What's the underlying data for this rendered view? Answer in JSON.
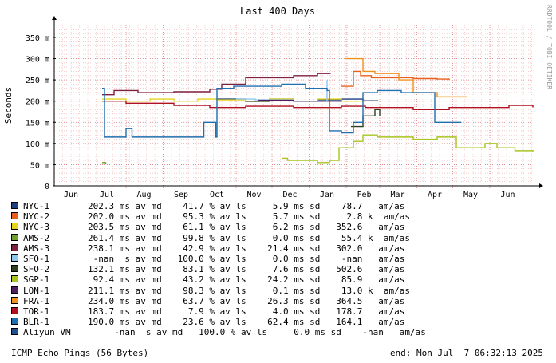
{
  "chart_data": {
    "type": "line",
    "title": "Last 400 Days",
    "ylabel": "Seconds",
    "watermark": "RRDTOOL / TOBI OETIKER",
    "ylim": [
      0,
      0.38
    ],
    "yticks": [
      {
        "v": 0,
        "label": "0"
      },
      {
        "v": 0.05,
        "label": "50 m"
      },
      {
        "v": 0.1,
        "label": "100 m"
      },
      {
        "v": 0.15,
        "label": "150 m"
      },
      {
        "v": 0.2,
        "label": "200 m"
      },
      {
        "v": 0.25,
        "label": "250 m"
      },
      {
        "v": 0.3,
        "label": "300 m"
      },
      {
        "v": 0.35,
        "label": "350 m"
      }
    ],
    "x_axis": "days ending 2025-07-07",
    "xlim_days": [
      0,
      400
    ],
    "months": [
      {
        "label": "Jun",
        "d": 14
      },
      {
        "label": "Jul",
        "d": 44
      },
      {
        "label": "Aug",
        "d": 75
      },
      {
        "label": "Sep",
        "d": 106
      },
      {
        "label": "Oct",
        "d": 136
      },
      {
        "label": "Nov",
        "d": 167
      },
      {
        "label": "Dec",
        "d": 197
      },
      {
        "label": "Jan",
        "d": 228
      },
      {
        "label": "Feb",
        "d": 259
      },
      {
        "label": "Mar",
        "d": 287
      },
      {
        "label": "Apr",
        "d": 318
      },
      {
        "label": "May",
        "d": 348
      },
      {
        "label": "Jun",
        "d": 379
      }
    ],
    "series": [
      {
        "name": "NYC-1",
        "color": "#1f3f7f",
        "points": [
          [
            135,
            0.205
          ],
          [
            160,
            0.199
          ],
          [
            180,
            0.205
          ],
          [
            200,
            0.2
          ],
          [
            220,
            0.203
          ],
          [
            240,
            0.205
          ],
          [
            258,
            0.201
          ],
          [
            270,
            0.203
          ]
        ]
      },
      {
        "name": "NYC-2",
        "color": "#e8601c",
        "points": [
          [
            240,
            0.235
          ],
          [
            250,
            0.27
          ],
          [
            256,
            0.26
          ],
          [
            265,
            0.255
          ],
          [
            280,
            0.255
          ],
          [
            300,
            0.253
          ],
          [
            320,
            0.252
          ],
          [
            330,
            0.25
          ]
        ]
      },
      {
        "name": "NYC-3",
        "color": "#e8d41c",
        "points": [
          [
            40,
            0.205
          ],
          [
            60,
            0.2
          ],
          [
            80,
            0.205
          ],
          [
            100,
            0.2
          ],
          [
            120,
            0.205
          ],
          [
            136,
            0.203
          ],
          [
            160,
            0.2
          ],
          [
            180,
            0.205
          ],
          [
            200,
            0.2
          ],
          [
            220,
            0.205
          ],
          [
            240,
            0.2
          ],
          [
            258,
            0.203
          ]
        ]
      },
      {
        "name": "AMS-2",
        "color": "#6f9f2f",
        "points": [
          [
            40,
            0.055
          ],
          [
            43,
            0.052
          ]
        ]
      },
      {
        "name": "AMS-3",
        "color": "#7f1f3f",
        "points": [
          [
            40,
            0.215
          ],
          [
            50,
            0.225
          ],
          [
            70,
            0.22
          ],
          [
            100,
            0.222
          ],
          [
            130,
            0.228
          ],
          [
            140,
            0.24
          ],
          [
            160,
            0.255
          ],
          [
            180,
            0.255
          ],
          [
            200,
            0.26
          ],
          [
            220,
            0.265
          ],
          [
            231,
            0.265
          ]
        ]
      },
      {
        "name": "SFO-1",
        "color": "#8fc8ef",
        "points": [
          [
            152,
            0.205
          ],
          [
            168,
            0.203
          ],
          [
            200,
            0.2
          ],
          [
            228,
            0.25
          ]
        ]
      },
      {
        "name": "SFO-2",
        "color": "#2f3f1f",
        "points": [
          [
            248,
            0.14
          ],
          [
            258,
            0.165
          ],
          [
            268,
            0.18
          ],
          [
            272,
            0.165
          ]
        ]
      },
      {
        "name": "SGP-1",
        "color": "#a8c41f",
        "points": [
          [
            190,
            0.065
          ],
          [
            195,
            0.06
          ],
          [
            210,
            0.06
          ],
          [
            220,
            0.055
          ],
          [
            230,
            0.06
          ],
          [
            238,
            0.09
          ],
          [
            250,
            0.105
          ],
          [
            258,
            0.12
          ],
          [
            270,
            0.115
          ],
          [
            285,
            0.115
          ],
          [
            300,
            0.11
          ],
          [
            320,
            0.115
          ],
          [
            336,
            0.09
          ],
          [
            345,
            0.09
          ],
          [
            360,
            0.1
          ],
          [
            370,
            0.09
          ],
          [
            385,
            0.083
          ],
          [
            400,
            0.08
          ]
        ]
      },
      {
        "name": "LON-1",
        "color": "#4f1f5f",
        "points": [
          [
            170,
            0.202
          ],
          [
            200,
            0.2
          ],
          [
            240,
            0.202
          ]
        ]
      },
      {
        "name": "FRA-1",
        "color": "#f0901f",
        "points": [
          [
            243,
            0.3
          ],
          [
            248,
            0.3
          ],
          [
            258,
            0.27
          ],
          [
            268,
            0.265
          ],
          [
            278,
            0.265
          ],
          [
            288,
            0.25
          ],
          [
            300,
            0.22
          ],
          [
            320,
            0.21
          ],
          [
            345,
            0.21
          ]
        ]
      },
      {
        "name": "TOR-1",
        "color": "#b0101f",
        "points": [
          [
            40,
            0.2
          ],
          [
            60,
            0.195
          ],
          [
            80,
            0.195
          ],
          [
            100,
            0.19
          ],
          [
            130,
            0.185
          ],
          [
            160,
            0.188
          ],
          [
            200,
            0.185
          ],
          [
            240,
            0.188
          ],
          [
            260,
            0.185
          ],
          [
            280,
            0.185
          ],
          [
            300,
            0.18
          ],
          [
            330,
            0.185
          ],
          [
            360,
            0.185
          ],
          [
            380,
            0.19
          ],
          [
            400,
            0.185
          ]
        ]
      },
      {
        "name": "BLR-1",
        "color": "#1f6faf",
        "points": [
          [
            40,
            0.23
          ],
          [
            42,
            0.115
          ],
          [
            55,
            0.115
          ],
          [
            60,
            0.135
          ],
          [
            65,
            0.115
          ],
          [
            80,
            0.115
          ],
          [
            90,
            0.115
          ],
          [
            100,
            0.115
          ],
          [
            115,
            0.115
          ],
          [
            120,
            0.115
          ],
          [
            125,
            0.15
          ],
          [
            135,
            0.115
          ],
          [
            136,
            0.23
          ],
          [
            150,
            0.235
          ],
          [
            170,
            0.235
          ],
          [
            190,
            0.24
          ],
          [
            210,
            0.23
          ],
          [
            228,
            0.225
          ],
          [
            230,
            0.13
          ],
          [
            240,
            0.125
          ],
          [
            250,
            0.15
          ],
          [
            258,
            0.22
          ],
          [
            270,
            0.225
          ],
          [
            290,
            0.22
          ],
          [
            310,
            0.22
          ],
          [
            318,
            0.15
          ],
          [
            330,
            0.15
          ],
          [
            340,
            0.15
          ]
        ]
      },
      {
        "name": "Aliyun_VM",
        "color": "#1f4f8f",
        "points": []
      }
    ],
    "legend": [
      {
        "name": "NYC-1",
        "color": "#1f3f7f",
        "stats": "202.3 ms av md    41.7 % av ls     5.9 ms sd    78.7   am/as"
      },
      {
        "name": "NYC-2",
        "color": "#e8601c",
        "stats": "202.0 ms av md    95.3 % av ls     5.7 ms sd     2.8 k  am/as"
      },
      {
        "name": "NYC-3",
        "color": "#e8d41c",
        "stats": "203.5 ms av md    61.1 % av ls     6.2 ms sd   352.6   am/as"
      },
      {
        "name": "AMS-2",
        "color": "#6f9f2f",
        "stats": "261.4 ms av md    99.8 % av ls     0.0 ms sd    55.4 k  am/as"
      },
      {
        "name": "AMS-3",
        "color": "#7f1f3f",
        "stats": "238.1 ms av md    42.9 % av ls    21.4 ms sd   302.0   am/as"
      },
      {
        "name": "SFO-1",
        "color": "#8fc8ef",
        "stats": " -nan  s av md   100.0 % av ls     0.0 ms sd    -nan   am/as"
      },
      {
        "name": "SFO-2",
        "color": "#2f3f1f",
        "stats": "132.1 ms av md    83.1 % av ls     7.6 ms sd   502.6   am/as"
      },
      {
        "name": "SGP-1",
        "color": "#a8c41f",
        "stats": " 92.4 ms av md    43.2 % av ls    24.2 ms sd    85.9   am/as"
      },
      {
        "name": "LON-1",
        "color": "#4f1f5f",
        "stats": "211.1 ms av md    98.3 % av ls     0.1 ms sd    13.0 k  am/as"
      },
      {
        "name": "FRA-1",
        "color": "#f0901f",
        "stats": "234.0 ms av md    63.7 % av ls    26.3 ms sd   364.5   am/as"
      },
      {
        "name": "TOR-1",
        "color": "#b0101f",
        "stats": "183.7 ms av md     7.9 % av ls     4.0 ms sd   178.7   am/as"
      },
      {
        "name": "BLR-1",
        "color": "#1f6faf",
        "stats": "190.0 ms av md    23.6 % av ls    62.4 ms sd   164.1   am/as"
      },
      {
        "name": "Aliyun_VM",
        "color": "#1f4f8f",
        "stats": "     -nan  s av md   100.0 % av ls     0.0 ms sd    -nan   am/as"
      }
    ]
  },
  "footer": {
    "left": "ICMP Echo Pings (56 Bytes)",
    "right": "end: Mon Jul  7 06:32:13 2025"
  }
}
